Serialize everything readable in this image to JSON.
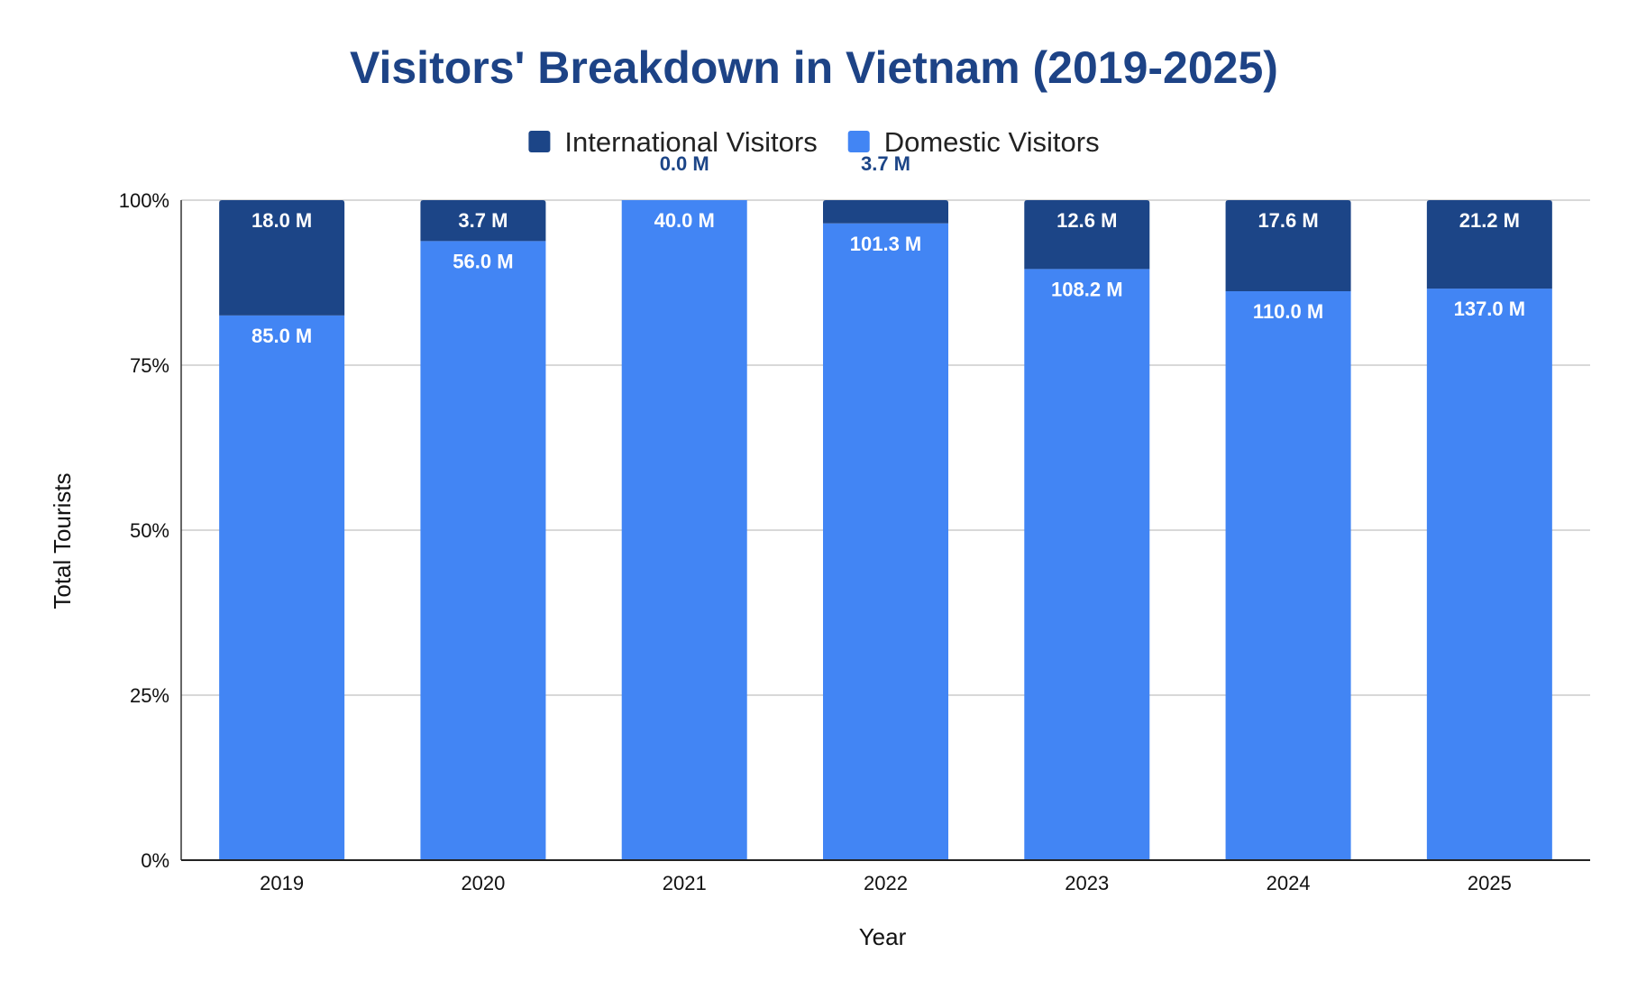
{
  "chart_data": {
    "type": "bar",
    "stacking": "percent",
    "title": "Visitors' Breakdown in Vietnam (2019-2025)",
    "xlabel": "Year",
    "ylabel": "Total Tourists",
    "categories": [
      "2019",
      "2020",
      "2021",
      "2022",
      "2023",
      "2024",
      "2025"
    ],
    "series": [
      {
        "name": "Domestic Visitors",
        "color": "#4285f4",
        "values": [
          85.0,
          56.0,
          40.0,
          101.3,
          108.2,
          110.0,
          137.0
        ],
        "labels": [
          "85.0 M",
          "56.0 M",
          "40.0 M",
          "101.3 M",
          "108.2 M",
          "110.0 M",
          "137.0 M"
        ]
      },
      {
        "name": "International Visitors",
        "color": "#1c4587",
        "values": [
          18.0,
          3.7,
          0.0,
          3.7,
          12.6,
          17.6,
          21.2
        ],
        "labels": [
          "18.0 M",
          "3.7 M",
          "0.0 M",
          "3.7 M",
          "12.6 M",
          "17.6 M",
          "21.2 M"
        ]
      }
    ],
    "legend_order": [
      "International Visitors",
      "Domestic Visitors"
    ],
    "legend_position": "top",
    "y_ticks": [
      "0%",
      "25%",
      "50%",
      "75%",
      "100%"
    ],
    "ylim": [
      0,
      100
    ],
    "grid": true
  }
}
